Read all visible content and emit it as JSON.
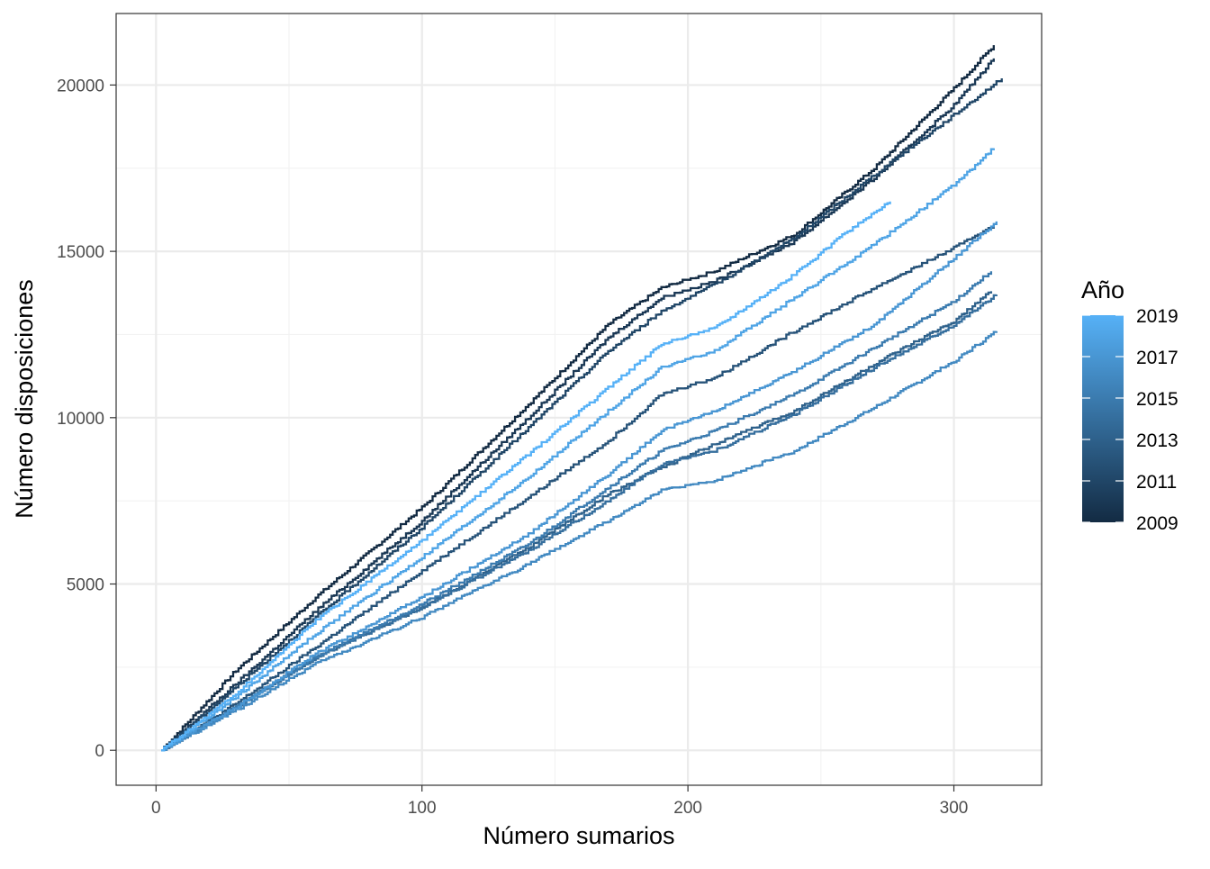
{
  "chart_data": {
    "type": "line",
    "title": "",
    "xlabel": "Número sumarios",
    "ylabel": "Número disposiciones",
    "xlim": [
      -15,
      333
    ],
    "ylim": [
      -1050,
      22150
    ],
    "x_ticks": [
      0,
      100,
      200,
      300
    ],
    "y_ticks": [
      0,
      5000,
      10000,
      15000,
      20000
    ],
    "x_tick_labels": [
      "0",
      "100",
      "200",
      "300"
    ],
    "y_tick_labels": [
      "0",
      "5000",
      "10000",
      "15000",
      "20000"
    ],
    "grid": true,
    "legend": {
      "title": "Año",
      "position": "right",
      "type": "colorbar",
      "labels": [
        "2019",
        "2017",
        "2015",
        "2013",
        "2011",
        "2009"
      ],
      "range": [
        2009,
        2019
      ],
      "low_color": "#132B43",
      "high_color": "#56B1F7"
    },
    "series": [
      {
        "year": 2009,
        "x": [
          2,
          30,
          60,
          100,
          140,
          170,
          190,
          210,
          240,
          270,
          300,
          315
        ],
        "y": [
          0,
          2400,
          4600,
          7300,
          10400,
          12800,
          13900,
          14400,
          15500,
          17500,
          19900,
          21200
        ]
      },
      {
        "year": 2010,
        "x": [
          2,
          30,
          60,
          100,
          140,
          170,
          190,
          210,
          240,
          270,
          300,
          315
        ],
        "y": [
          0,
          2000,
          4200,
          6900,
          10000,
          12400,
          13600,
          14100,
          15300,
          17200,
          19400,
          20800
        ]
      },
      {
        "year": 2011,
        "x": [
          2,
          30,
          60,
          100,
          140,
          170,
          190,
          210,
          240,
          270,
          300,
          318
        ],
        "y": [
          0,
          1900,
          4000,
          6700,
          9700,
          12000,
          13200,
          14000,
          15400,
          17300,
          19100,
          20200
        ]
      },
      {
        "year": 2012,
        "x": [
          2,
          30,
          60,
          100,
          140,
          170,
          190,
          210,
          240,
          270,
          300,
          315
        ],
        "y": [
          0,
          1400,
          3100,
          5400,
          7600,
          9300,
          10700,
          11200,
          12600,
          13900,
          15100,
          15800
        ]
      },
      {
        "year": 2013,
        "x": [
          2,
          30,
          60,
          100,
          140,
          170,
          190,
          210,
          240,
          270,
          300,
          314
        ],
        "y": [
          0,
          1300,
          2800,
          4300,
          6100,
          7700,
          8500,
          9200,
          10200,
          11600,
          12900,
          13800
        ]
      },
      {
        "year": 2014,
        "x": [
          2,
          30,
          60,
          100,
          140,
          170,
          190,
          210,
          240,
          270,
          300,
          316
        ],
        "y": [
          0,
          1300,
          2800,
          4300,
          6000,
          7500,
          8600,
          9000,
          10100,
          11500,
          12800,
          13700
        ]
      },
      {
        "year": 2015,
        "x": [
          2,
          30,
          60,
          100,
          140,
          170,
          190,
          210,
          240,
          270,
          300,
          314
        ],
        "y": [
          0,
          1300,
          2800,
          4400,
          6200,
          7900,
          9000,
          9600,
          10700,
          12100,
          13500,
          14400
        ]
      },
      {
        "year": 2016,
        "x": [
          2,
          30,
          60,
          100,
          140,
          170,
          190,
          210,
          240,
          270,
          300,
          316
        ],
        "y": [
          0,
          1200,
          2600,
          4000,
          5600,
          6900,
          7800,
          8100,
          9000,
          10300,
          11700,
          12600
        ]
      },
      {
        "year": 2017,
        "x": [
          2,
          30,
          60,
          100,
          140,
          170,
          190,
          210,
          240,
          270,
          300,
          316
        ],
        "y": [
          0,
          1300,
          2900,
          4600,
          6500,
          8300,
          9600,
          10200,
          11400,
          12800,
          14800,
          15900
        ]
      },
      {
        "year": 2018,
        "x": [
          2,
          30,
          60,
          100,
          140,
          170,
          190,
          210,
          240,
          270,
          300,
          315
        ],
        "y": [
          0,
          1600,
          3500,
          5800,
          8200,
          10200,
          11500,
          12000,
          13600,
          15200,
          17000,
          18100
        ]
      },
      {
        "year": 2019,
        "x": [
          2,
          30,
          60,
          100,
          140,
          170,
          190,
          210,
          240,
          260,
          276
        ],
        "y": [
          0,
          1700,
          3900,
          6300,
          8900,
          10900,
          12200,
          12700,
          14300,
          15600,
          16500
        ]
      }
    ]
  }
}
